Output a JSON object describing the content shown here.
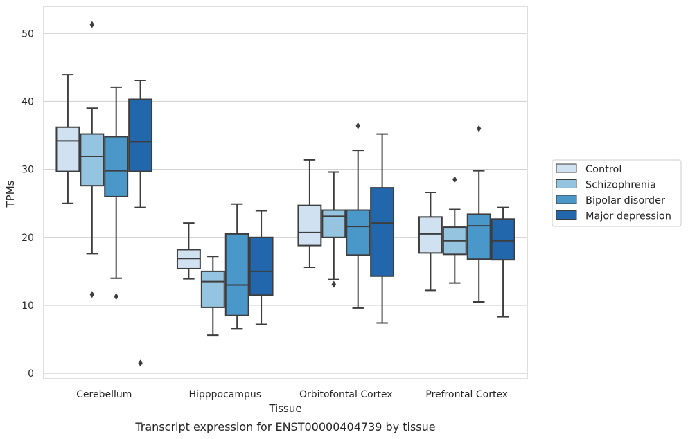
{
  "chart_data": {
    "type": "box",
    "title": "",
    "caption": "Transcript expression for ENST00000404739 by tissue",
    "xlabel": "Tissue",
    "ylabel": "TPMs",
    "ylim": [
      -0.8,
      54
    ],
    "yticks": [
      0,
      10,
      20,
      30,
      40,
      50
    ],
    "grid": "horizontal",
    "legend_position": "right",
    "categories": [
      "Cerebellum",
      "Hipppocampus",
      "Orbitofontal Cortex",
      "Prefrontal Cortex"
    ],
    "series": [
      {
        "name": "Control",
        "color": "#d0e1f2",
        "boxes": [
          {
            "whisker_low": 25.0,
            "q1": 29.7,
            "median": 34.2,
            "q3": 36.2,
            "whisker_high": 43.9,
            "outliers": []
          },
          {
            "whisker_low": 13.9,
            "q1": 15.4,
            "median": 16.9,
            "q3": 18.2,
            "whisker_high": 22.1,
            "outliers": []
          },
          {
            "whisker_low": 15.6,
            "q1": 18.8,
            "median": 20.7,
            "q3": 24.7,
            "whisker_high": 31.4,
            "outliers": []
          },
          {
            "whisker_low": 12.2,
            "q1": 17.7,
            "median": 20.5,
            "q3": 23.0,
            "whisker_high": 26.6,
            "outliers": []
          }
        ]
      },
      {
        "name": "Schizophrenia",
        "color": "#94c4df",
        "boxes": [
          {
            "whisker_low": 17.6,
            "q1": 27.6,
            "median": 31.9,
            "q3": 35.2,
            "whisker_high": 39.0,
            "outliers": [
              51.3,
              11.6
            ]
          },
          {
            "whisker_low": 5.6,
            "q1": 9.7,
            "median": 13.5,
            "q3": 15.0,
            "whisker_high": 17.2,
            "outliers": []
          },
          {
            "whisker_low": 13.8,
            "q1": 20.0,
            "median": 23.1,
            "q3": 24.0,
            "whisker_high": 29.6,
            "outliers": [
              13.1
            ]
          },
          {
            "whisker_low": 13.3,
            "q1": 17.5,
            "median": 19.5,
            "q3": 21.5,
            "whisker_high": 24.1,
            "outliers": [
              28.5
            ]
          }
        ]
      },
      {
        "name": "Bipolar disorder",
        "color": "#4a98c9",
        "boxes": [
          {
            "whisker_low": 14.0,
            "q1": 26.0,
            "median": 29.8,
            "q3": 34.8,
            "whisker_high": 42.1,
            "outliers": [
              11.3
            ]
          },
          {
            "whisker_low": 6.6,
            "q1": 8.5,
            "median": 13.0,
            "q3": 20.5,
            "whisker_high": 24.9,
            "outliers": []
          },
          {
            "whisker_low": 9.6,
            "q1": 17.4,
            "median": 21.6,
            "q3": 24.0,
            "whisker_high": 32.8,
            "outliers": [
              36.4
            ]
          },
          {
            "whisker_low": 10.5,
            "q1": 16.8,
            "median": 21.7,
            "q3": 23.4,
            "whisker_high": 29.8,
            "outliers": [
              36.0
            ]
          }
        ]
      },
      {
        "name": "Major depression",
        "color": "#2266ac",
        "boxes": [
          {
            "whisker_low": 24.4,
            "q1": 29.7,
            "median": 34.1,
            "q3": 40.3,
            "whisker_high": 43.1,
            "outliers": [
              1.5
            ]
          },
          {
            "whisker_low": 7.2,
            "q1": 11.5,
            "median": 15.0,
            "q3": 20.0,
            "whisker_high": 23.9,
            "outliers": []
          },
          {
            "whisker_low": 7.4,
            "q1": 14.3,
            "median": 22.1,
            "q3": 27.3,
            "whisker_high": 35.2,
            "outliers": []
          },
          {
            "whisker_low": 8.3,
            "q1": 16.7,
            "median": 19.5,
            "q3": 22.7,
            "whisker_high": 24.4,
            "outliers": []
          }
        ]
      }
    ]
  }
}
